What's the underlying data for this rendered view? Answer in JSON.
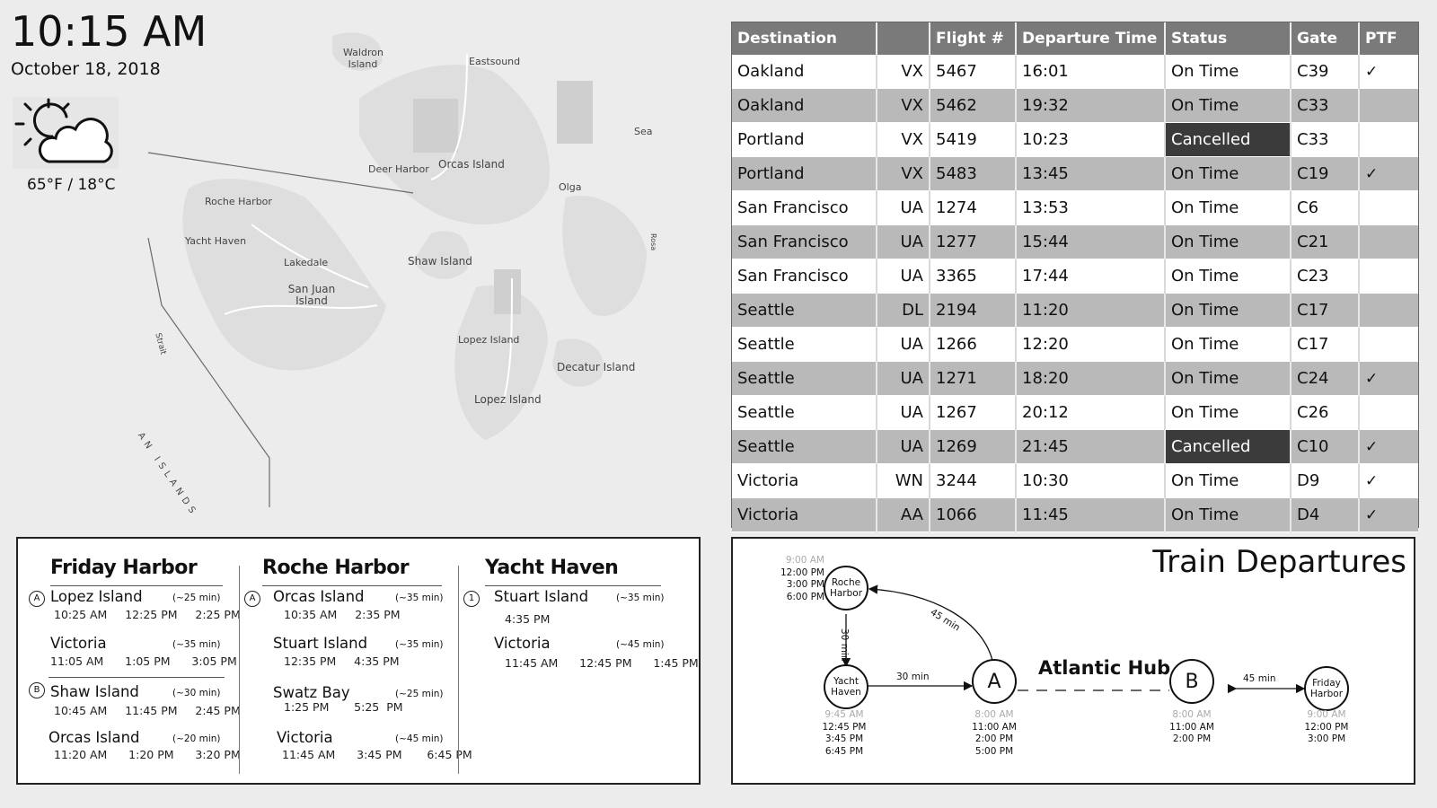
{
  "clock": {
    "time": "10:15 AM",
    "date": "October 18, 2018"
  },
  "weather": {
    "icon": "partly-cloudy-icon",
    "temp": "65°F / 18°C"
  },
  "map": {
    "labels": [
      "Waldron Island",
      "Eastsound",
      "Sea",
      "Deer Harbor",
      "Orcas Island",
      "Olga",
      "Roche Harbor",
      "Yacht Haven",
      "Lakedale",
      "Shaw Island",
      "San Juan Island",
      "Lopez Island",
      "Decatur Island",
      "Lopez Island",
      "AN ISLANDS",
      "Strait",
      "Rosa"
    ]
  },
  "flights": {
    "headers": [
      "Destination",
      "",
      "Flight #",
      "Departure Time",
      "Status",
      "Gate",
      "PTF"
    ],
    "rows": [
      {
        "dest": "Oakland",
        "carrier": "VX",
        "num": "5467",
        "time": "16:01",
        "status": "On Time",
        "gate": "C39",
        "ptf": "✓"
      },
      {
        "dest": "Oakland",
        "carrier": "VX",
        "num": "5462",
        "time": "19:32",
        "status": "On Time",
        "gate": "C33",
        "ptf": ""
      },
      {
        "dest": "Portland",
        "carrier": "VX",
        "num": "5419",
        "time": "10:23",
        "status": "Cancelled",
        "gate": "C33",
        "ptf": ""
      },
      {
        "dest": "Portland",
        "carrier": "VX",
        "num": "5483",
        "time": "13:45",
        "status": "On Time",
        "gate": "C19",
        "ptf": "✓"
      },
      {
        "dest": "San Francisco",
        "carrier": "UA",
        "num": "1274",
        "time": "13:53",
        "status": "On Time",
        "gate": "C6",
        "ptf": ""
      },
      {
        "dest": "San Francisco",
        "carrier": "UA",
        "num": "1277",
        "time": "15:44",
        "status": "On Time",
        "gate": "C21",
        "ptf": ""
      },
      {
        "dest": "San Francisco",
        "carrier": "UA",
        "num": "3365",
        "time": "17:44",
        "status": "On Time",
        "gate": "C23",
        "ptf": ""
      },
      {
        "dest": "Seattle",
        "carrier": "DL",
        "num": "2194",
        "time": "11:20",
        "status": "On Time",
        "gate": "C17",
        "ptf": ""
      },
      {
        "dest": "Seattle",
        "carrier": "UA",
        "num": "1266",
        "time": "12:20",
        "status": "On Time",
        "gate": "C17",
        "ptf": ""
      },
      {
        "dest": "Seattle",
        "carrier": "UA",
        "num": "1271",
        "time": "18:20",
        "status": "On Time",
        "gate": "C24",
        "ptf": "✓"
      },
      {
        "dest": "Seattle",
        "carrier": "UA",
        "num": "1267",
        "time": "20:12",
        "status": "On Time",
        "gate": "C26",
        "ptf": ""
      },
      {
        "dest": "Seattle",
        "carrier": "UA",
        "num": "1269",
        "time": "21:45",
        "status": "Cancelled",
        "gate": "C10",
        "ptf": "✓"
      },
      {
        "dest": "Victoria",
        "carrier": "WN",
        "num": "3244",
        "time": "10:30",
        "status": "On Time",
        "gate": "D9",
        "ptf": "✓"
      },
      {
        "dest": "Victoria",
        "carrier": "AA",
        "num": "1066",
        "time": "11:45",
        "status": "On Time",
        "gate": "D4",
        "ptf": "✓"
      }
    ]
  },
  "ferry": {
    "friday": {
      "title": "Friday Harbor",
      "routes": [
        {
          "badge": "A",
          "dest": "Lopez Island",
          "dur": "(~25 min)",
          "times": "10:25 AM     12:25 PM     2:25 PM"
        },
        {
          "badge": "",
          "dest": "Victoria",
          "dur": "(~35 min)",
          "times": "11:05 AM      1:05 PM      3:05 PM"
        },
        {
          "badge": "B",
          "dest": "Shaw Island",
          "dur": "(~30 min)",
          "times": "10:45 AM     11:45 PM     2:45 PM"
        },
        {
          "badge": "",
          "dest": "Orcas Island",
          "dur": "(~20 min)",
          "times": "11:20 AM      1:20 PM      3:20 PM"
        }
      ]
    },
    "roche": {
      "title": "Roche Harbor",
      "routes": [
        {
          "badge": "A",
          "dest": "Orcas Island",
          "dur": "(~35 min)",
          "times": "10:35 AM     2:35 PM"
        },
        {
          "badge": "",
          "dest": "Stuart Island",
          "dur": "(~35 min)",
          "times": "12:35 PM     4:35 PM"
        },
        {
          "badge": "",
          "dest": "Swatz Bay",
          "dur": "(~25 min)",
          "times": "1:25 PM       5:25  PM"
        },
        {
          "badge": "",
          "dest": "Victoria",
          "dur": "(~45 min)",
          "times": "11:45 AM      3:45 PM       6:45 PM"
        }
      ]
    },
    "yacht": {
      "title": "Yacht Haven",
      "routes": [
        {
          "badge": "1",
          "dest": "Stuart Island",
          "dur": "(~35 min)",
          "times": "4:35 PM"
        },
        {
          "badge": "",
          "dest": "Victoria",
          "dur": "(~45 min)",
          "times": "11:45 AM      12:45 PM      1:45 PM"
        }
      ]
    }
  },
  "trains": {
    "title": "Train Departures",
    "hub": "Atlantic Hub",
    "nodes": {
      "roche": {
        "label": "Roche\nHarbor",
        "times": [
          "9:00 AM",
          "12:00 PM",
          "3:00 PM",
          "6:00 PM"
        ]
      },
      "yacht": {
        "label": "Yacht\nHaven",
        "times": [
          "9:45 AM",
          "12:45 PM",
          "3:45 PM",
          "6:45 PM"
        ]
      },
      "a": {
        "label": "A",
        "times": [
          "8:00 AM",
          "11:00 AM",
          "2:00 PM",
          "5:00 PM"
        ]
      },
      "b": {
        "label": "B",
        "times": [
          "8:00 AM",
          "11:00 AM",
          "2:00 PM"
        ]
      },
      "friday": {
        "label": "Friday\nHarbor",
        "times": [
          "9:00 AM",
          "12:00 PM",
          "3:00 PM"
        ]
      }
    },
    "segments": {
      "roche_yacht": "30 min",
      "yacht_a": "30 min",
      "a_roche": "45 min",
      "b_friday": "45 min"
    }
  }
}
